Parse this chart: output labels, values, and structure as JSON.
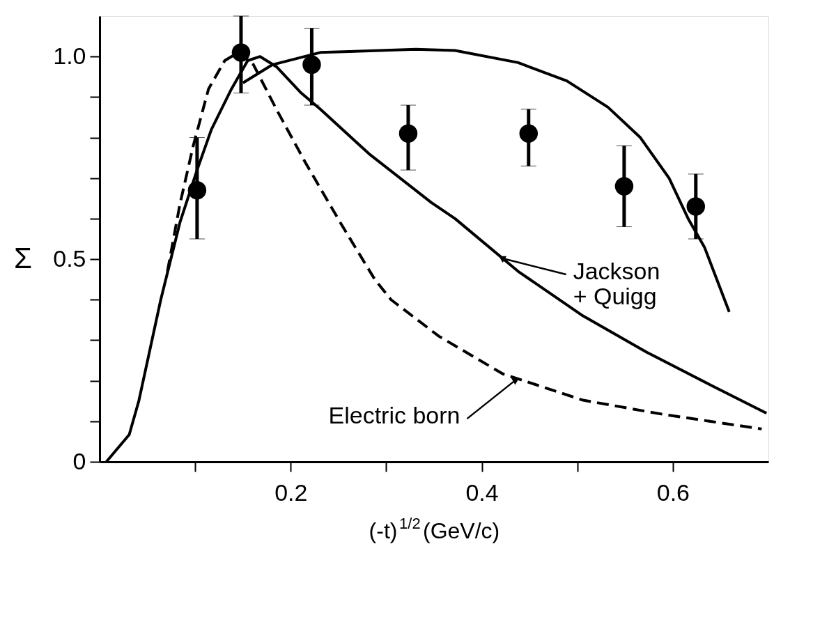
{
  "chart_data": {
    "type": "line",
    "xlabel": "(-t)$^{1/2}$(GeV/c)",
    "ylabel": "Σ",
    "xlim": [
      0,
      0.7
    ],
    "ylim": [
      0,
      1.1
    ],
    "xticks": [
      {
        "value": 0.1,
        "label": null
      },
      0.2,
      {
        "value": 0.3,
        "label": null
      },
      0.4,
      {
        "value": 0.5,
        "label": null
      },
      0.6
    ],
    "yticks": [
      0,
      {
        "value": 0.1,
        "label": null
      },
      {
        "value": 0.2,
        "label": null
      },
      {
        "value": 0.3,
        "label": null
      },
      {
        "value": 0.4,
        "label": null
      },
      0.5,
      {
        "value": 0.6,
        "label": null
      },
      {
        "value": 0.7,
        "label": null
      },
      {
        "value": 0.8,
        "label": null
      },
      {
        "value": 0.9,
        "label": null
      },
      {
        "value": 1.0,
        "label": "1.0"
      }
    ],
    "grid": false,
    "series": [
      {
        "type": "scatter",
        "marker": "circle",
        "color": "#000000",
        "x": [
          0.102,
          0.148,
          0.222,
          0.323,
          0.449,
          0.549,
          0.624
        ],
        "values": [
          0.67,
          1.01,
          0.98,
          0.81,
          0.81,
          0.68,
          0.63
        ],
        "errors": [
          [
            0.55,
            0.8
          ],
          [
            0.91,
            1.1
          ],
          [
            0.88,
            1.07
          ],
          [
            0.72,
            0.88
          ],
          [
            0.73,
            0.87
          ],
          [
            0.58,
            0.78
          ],
          [
            0.55,
            0.71
          ]
        ]
      },
      {
        "line_style": "solid",
        "color": "#000000",
        "x": [
          0.007,
          0.031,
          0.041,
          0.064,
          0.084,
          0.102,
          0.117,
          0.138,
          0.155,
          0.168,
          0.185,
          0.211,
          0.231,
          0.282,
          0.347,
          0.372,
          0.438,
          0.506,
          0.573,
          0.639,
          0.698
        ],
        "values": [
          0.0,
          0.067,
          0.15,
          0.4,
          0.59,
          0.72,
          0.82,
          0.92,
          0.99,
          1.0,
          0.975,
          0.91,
          0.87,
          0.76,
          0.64,
          0.6,
          0.47,
          0.36,
          0.27,
          0.19,
          0.12
        ]
      },
      {
        "line_style": "solid",
        "color": "#000000",
        "x": [
          0.15,
          0.181,
          0.231,
          0.331,
          0.372,
          0.438,
          0.489,
          0.532,
          0.566,
          0.596,
          0.616,
          0.633,
          0.659
        ],
        "values": [
          0.935,
          0.98,
          1.01,
          1.018,
          1.015,
          0.985,
          0.94,
          0.875,
          0.8,
          0.7,
          0.6,
          0.53,
          0.37
        ]
      },
      {
        "line_style": "dashed",
        "color": "#000000",
        "x": [
          0.071,
          0.084,
          0.098,
          0.114,
          0.131,
          0.145,
          0.161,
          0.185,
          0.215,
          0.252,
          0.288,
          0.305,
          0.355,
          0.422,
          0.506,
          0.59,
          0.693
        ],
        "values": [
          0.47,
          0.635,
          0.78,
          0.92,
          0.99,
          1.01,
          0.98,
          0.87,
          0.74,
          0.59,
          0.45,
          0.4,
          0.31,
          0.217,
          0.152,
          0.117,
          0.081
        ]
      }
    ],
    "annotations": [
      {
        "text": "Jackson\n+ Quigg",
        "x": 0.419,
        "y": 0.507
      },
      {
        "text": "Electric born",
        "x": 0.432,
        "y": 0.206
      }
    ]
  }
}
